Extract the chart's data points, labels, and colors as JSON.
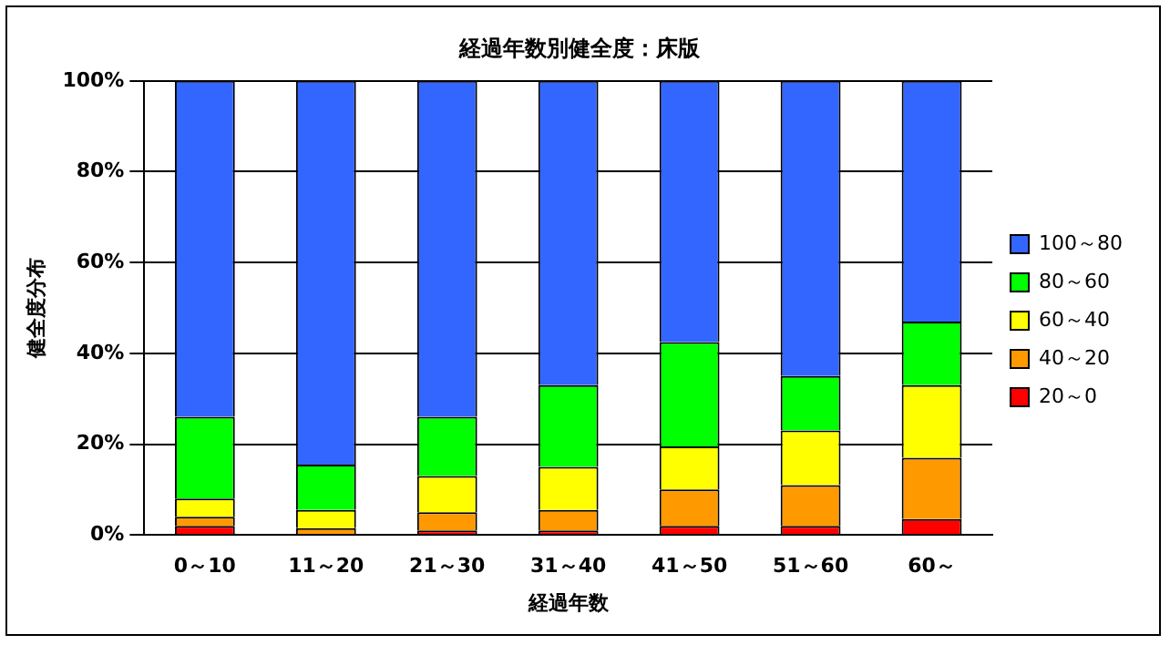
{
  "chart_data": {
    "type": "bar",
    "title": "経過年数別健全度：床版",
    "xlabel": "経過年数",
    "ylabel": "健全度分布",
    "categories": [
      "0～10",
      "11～20",
      "21～30",
      "31～40",
      "41～50",
      "51～60",
      "60～"
    ],
    "stacked": true,
    "grid": "y",
    "legend": "right",
    "ylim": [
      0,
      100
    ],
    "yticks": [
      {
        "value": 0,
        "label": "0%"
      },
      {
        "value": 20,
        "label": "20%"
      },
      {
        "value": 40,
        "label": "40%"
      },
      {
        "value": 60,
        "label": "60%"
      },
      {
        "value": 80,
        "label": "80%"
      },
      {
        "value": 100,
        "label": "100%"
      }
    ],
    "series": [
      {
        "name": "20～0",
        "color": "#ff0000",
        "values": [
          2,
          0,
          1,
          1,
          2,
          2,
          3.5
        ]
      },
      {
        "name": "40～20",
        "color": "#ff9900",
        "values": [
          2,
          1.5,
          4,
          4.5,
          8,
          9,
          13.5
        ]
      },
      {
        "name": "60～40",
        "color": "#ffff00",
        "values": [
          4,
          4,
          8,
          9.5,
          9.5,
          12,
          16
        ]
      },
      {
        "name": "80～60",
        "color": "#00ff00",
        "values": [
          18,
          10,
          13,
          18,
          23,
          12,
          14
        ]
      },
      {
        "name": "100～80",
        "color": "#3366ff",
        "values": [
          74,
          84.5,
          74,
          67,
          57.5,
          65,
          53
        ]
      }
    ]
  }
}
